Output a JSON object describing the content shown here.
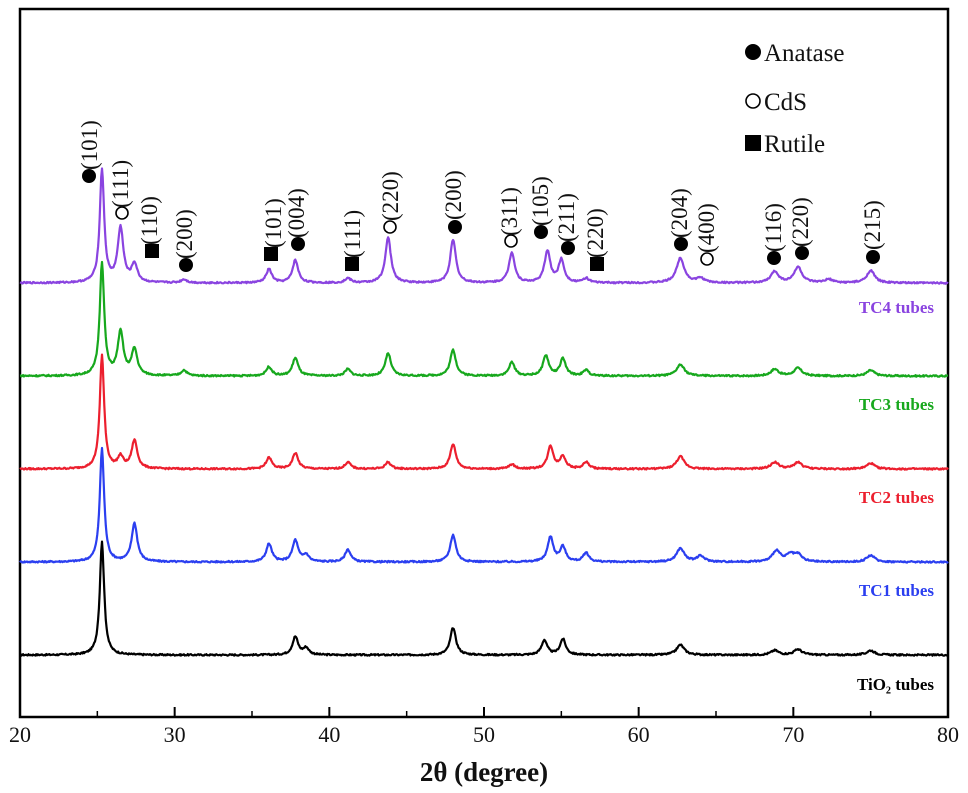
{
  "chart_data": {
    "type": "line",
    "title": "",
    "xlabel": "2θ (degree)",
    "ylabel": "",
    "xlim": [
      20,
      80
    ],
    "xticks": [
      20,
      30,
      40,
      50,
      60,
      70,
      80
    ],
    "xtick_labels": [
      "20",
      "30",
      "40",
      "50",
      "60",
      "70",
      "80"
    ],
    "grid": false,
    "y_axis_visible": false,
    "legend": {
      "position": "top-right",
      "entries": [
        {
          "marker": "filled-circle",
          "label": "Anatase"
        },
        {
          "marker": "open-circle",
          "label": "CdS"
        },
        {
          "marker": "filled-square",
          "label": "Rutile"
        }
      ]
    },
    "series": [
      {
        "name": "TiO₂ tubes",
        "color": "#000000",
        "offset": 0,
        "peaks": [
          [
            25.3,
            100
          ],
          [
            37.8,
            16
          ],
          [
            38.5,
            6
          ],
          [
            48.0,
            24
          ],
          [
            53.9,
            13
          ],
          [
            55.1,
            14
          ],
          [
            62.7,
            9
          ],
          [
            68.8,
            4
          ],
          [
            70.3,
            5
          ],
          [
            75.0,
            4
          ]
        ]
      },
      {
        "name": "TC1 tubes",
        "color": "#2b3ff0",
        "offset": 1,
        "peaks": [
          [
            25.3,
            100
          ],
          [
            27.4,
            34
          ],
          [
            36.1,
            16
          ],
          [
            37.8,
            19
          ],
          [
            38.5,
            6
          ],
          [
            41.2,
            11
          ],
          [
            48.0,
            24
          ],
          [
            54.3,
            22
          ],
          [
            55.1,
            13
          ],
          [
            56.6,
            8
          ],
          [
            62.7,
            12
          ],
          [
            64.0,
            5
          ],
          [
            68.9,
            10
          ],
          [
            69.8,
            6
          ],
          [
            70.3,
            6
          ],
          [
            75.0,
            6
          ]
        ]
      },
      {
        "name": "TC2 tubes",
        "color": "#ec1f2e",
        "offset": 2,
        "peaks": [
          [
            25.3,
            100
          ],
          [
            26.5,
            10
          ],
          [
            27.4,
            25
          ],
          [
            36.1,
            10
          ],
          [
            37.8,
            14
          ],
          [
            41.2,
            6
          ],
          [
            43.8,
            6
          ],
          [
            48.0,
            22
          ],
          [
            51.8,
            4
          ],
          [
            54.3,
            20
          ],
          [
            55.1,
            11
          ],
          [
            56.6,
            6
          ],
          [
            62.7,
            11
          ],
          [
            68.8,
            6
          ],
          [
            70.3,
            6
          ],
          [
            75.0,
            5
          ]
        ]
      },
      {
        "name": "TC3 tubes",
        "color": "#17a81d",
        "offset": 3,
        "peaks": [
          [
            25.3,
            100
          ],
          [
            26.5,
            38
          ],
          [
            27.4,
            23
          ],
          [
            30.6,
            5
          ],
          [
            36.1,
            8
          ],
          [
            37.8,
            16
          ],
          [
            41.2,
            6
          ],
          [
            43.8,
            20
          ],
          [
            48.0,
            23
          ],
          [
            51.8,
            12
          ],
          [
            54.0,
            18
          ],
          [
            55.1,
            15
          ],
          [
            56.6,
            5
          ],
          [
            62.7,
            10
          ],
          [
            68.8,
            6
          ],
          [
            70.3,
            7
          ],
          [
            75.0,
            5
          ]
        ]
      },
      {
        "name": "TC4 tubes",
        "color": "#8a44e0",
        "offset": 4,
        "peaks": [
          [
            25.3,
            100
          ],
          [
            26.5,
            48
          ],
          [
            27.4,
            16
          ],
          [
            30.6,
            3
          ],
          [
            36.1,
            12
          ],
          [
            37.8,
            20
          ],
          [
            41.2,
            4
          ],
          [
            43.8,
            40
          ],
          [
            48.0,
            38
          ],
          [
            51.8,
            27
          ],
          [
            54.1,
            28
          ],
          [
            55.0,
            20
          ],
          [
            56.6,
            4
          ],
          [
            62.7,
            22
          ],
          [
            64.0,
            4
          ],
          [
            68.8,
            10
          ],
          [
            70.3,
            14
          ],
          [
            72.3,
            3
          ],
          [
            75.0,
            11
          ]
        ]
      }
    ],
    "peak_annotations": [
      {
        "label": "(101)",
        "phase": "Anatase",
        "x": 25.3
      },
      {
        "label": "(111)",
        "phase": "CdS",
        "x": 26.6
      },
      {
        "label": "(110)",
        "phase": "Rutile",
        "x": 28.3
      },
      {
        "label": "(200)",
        "phase": "Anatase",
        "x": 30.7
      },
      {
        "label": "(101)",
        "phase": "Rutile",
        "x": 36.3
      },
      {
        "label": "(004)",
        "phase": "Anatase",
        "x": 37.9
      },
      {
        "label": "(111)",
        "phase": "Rutile",
        "x": 41.4
      },
      {
        "label": "(220)",
        "phase": "CdS",
        "x": 44.0
      },
      {
        "label": "(200)",
        "phase": "Anatase",
        "x": 48.3
      },
      {
        "label": "(311)",
        "phase": "CdS",
        "x": 51.8
      },
      {
        "label": "(105)",
        "phase": "Anatase",
        "x": 53.8
      },
      {
        "label": "(211)",
        "phase": "Anatase",
        "x": 55.5
      },
      {
        "label": "(220)",
        "phase": "Rutile",
        "x": 57.2
      },
      {
        "label": "(204)",
        "phase": "Anatase",
        "x": 62.9
      },
      {
        "label": "(400)",
        "phase": "CdS",
        "x": 64.5
      },
      {
        "label": "(116)",
        "phase": "Anatase",
        "x": 68.9
      },
      {
        "label": "(220)",
        "phase": "Anatase",
        "x": 70.5
      },
      {
        "label": "(215)",
        "phase": "Anatase",
        "x": 75.2
      }
    ]
  }
}
